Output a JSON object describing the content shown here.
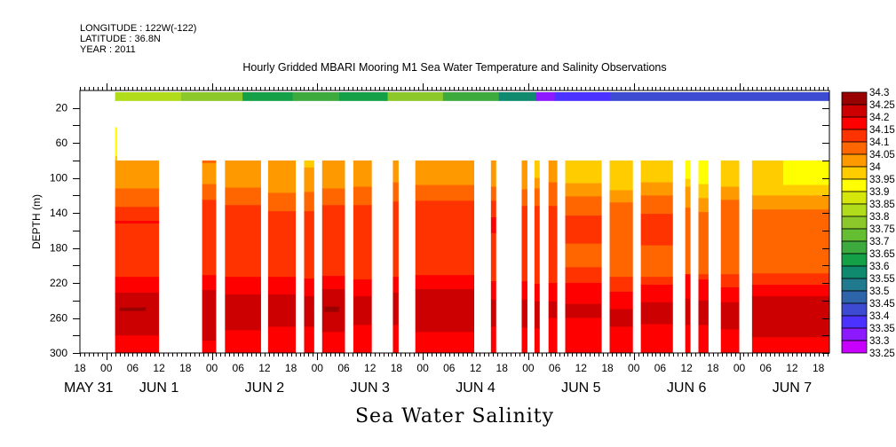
{
  "header": {
    "longitude": "LONGITUDE : 122W(-122)",
    "latitude": "LATITUDE : 36.8N",
    "year": "YEAR : 2011"
  },
  "chart_data": {
    "type": "heatmap",
    "title": "Hourly Gridded MBARI Mooring M1 Sea Water Temperature and Salinity Observations",
    "xlabel": "Sea Water Salinity",
    "ylabel": "DEPTH (m)",
    "x_units": "hours since 2011-06-01 00:00",
    "xlim": [
      -6,
      164.5
    ],
    "ylim": [
      0,
      300
    ],
    "y_ticks": [
      20,
      60,
      100,
      140,
      180,
      220,
      260,
      300
    ],
    "y_tick_labels": [
      "20",
      "60",
      "100",
      "140",
      "180",
      "220",
      "260",
      "300"
    ],
    "x_hour_ticks": [
      -6,
      0,
      6,
      12,
      18,
      24,
      30,
      36,
      42,
      48,
      54,
      60,
      66,
      72,
      78,
      84,
      90,
      96,
      102,
      108,
      114,
      120,
      126,
      132,
      138,
      144,
      150,
      156,
      162
    ],
    "x_hour_labels": [
      "18",
      "00",
      "06",
      "12",
      "18",
      "00",
      "06",
      "12",
      "18",
      "00",
      "06",
      "12",
      "18",
      "00",
      "06",
      "12",
      "18",
      "00",
      "06",
      "12",
      "18",
      "00",
      "06",
      "12",
      "18",
      "00",
      "06",
      "12",
      "18"
    ],
    "day_labels": [
      {
        "label": "MAY 31",
        "hour": -10
      },
      {
        "label": "JUN  1",
        "hour": 12
      },
      {
        "label": "JUN  2",
        "hour": 36
      },
      {
        "label": "JUN  3",
        "hour": 60
      },
      {
        "label": "JUN  4",
        "hour": 84
      },
      {
        "label": "JUN  5",
        "hour": 108
      },
      {
        "label": "JUN  6",
        "hour": 132
      },
      {
        "label": "JUN  7",
        "hour": 156
      }
    ],
    "colorbar": {
      "labels": [
        "34.3",
        "34.25",
        "34.2",
        "34.15",
        "34.1",
        "34.05",
        "34",
        "33.95",
        "33.9",
        "33.85",
        "33.8",
        "33.75",
        "33.7",
        "33.65",
        "33.6",
        "33.55",
        "33.5",
        "33.45",
        "33.4",
        "33.35",
        "33.3",
        "33.25"
      ],
      "colors": [
        "#990000",
        "#cc0000",
        "#ff0000",
        "#ff3300",
        "#ff6600",
        "#ff9900",
        "#ffcc00",
        "#ffff00",
        "#d4e60a",
        "#b0dc1c",
        "#8cc82a",
        "#64be32",
        "#3caa3c",
        "#14a046",
        "#0f8a6e",
        "#1e7a8c",
        "#2d64aa",
        "#3c4bd2",
        "#4b32ff",
        "#8c19ff",
        "#c800ff"
      ],
      "top_level": 34.25,
      "step": 0.05
    },
    "surface": {
      "depth_range": [
        2,
        12
      ],
      "segments": [
        [
          2,
          17,
          33.8
        ],
        [
          17,
          31,
          33.75
        ],
        [
          31,
          42.4,
          33.6
        ],
        [
          42.4,
          53,
          33.65
        ],
        [
          53,
          64,
          33.6
        ],
        [
          64,
          76.6,
          33.75
        ],
        [
          76.6,
          89.3,
          33.65
        ],
        [
          89.3,
          97.8,
          33.55
        ],
        [
          97.8,
          102,
          33.3
        ],
        [
          102,
          114.7,
          33.35
        ],
        [
          114.7,
          164.4,
          33.4
        ]
      ]
    },
    "spike": {
      "start": 2,
      "end": 2.5,
      "bands": [
        [
          42,
          33.9
        ],
        [
          75,
          33.95
        ]
      ],
      "bottom": 80
    },
    "columns": [
      {
        "start": 2,
        "end": 12,
        "bands": [
          [
            80,
            34.0
          ],
          [
            112,
            34.05
          ],
          [
            133,
            34.1
          ],
          [
            213,
            34.15
          ],
          [
            231,
            34.2
          ],
          [
            280,
            34.15
          ]
        ]
      },
      {
        "start": 21.8,
        "end": 25,
        "bands": [
          [
            80,
            34.05
          ],
          [
            83,
            34.0
          ],
          [
            107,
            34.05
          ],
          [
            125,
            34.1
          ],
          [
            211,
            34.15
          ],
          [
            228,
            34.2
          ],
          [
            286,
            34.15
          ]
        ]
      },
      {
        "start": 27,
        "end": 35.2,
        "bands": [
          [
            80,
            34.0
          ],
          [
            111,
            34.05
          ],
          [
            131,
            34.1
          ],
          [
            213,
            34.15
          ],
          [
            233,
            34.2
          ],
          [
            274,
            34.15
          ]
        ]
      },
      {
        "start": 36.8,
        "end": 43.1,
        "bands": [
          [
            80,
            34.0
          ],
          [
            117,
            34.05
          ],
          [
            138,
            34.1
          ],
          [
            213,
            34.15
          ],
          [
            233,
            34.2
          ],
          [
            270,
            34.15
          ]
        ]
      },
      {
        "start": 45,
        "end": 47.3,
        "bands": [
          [
            80,
            33.95
          ],
          [
            88,
            34.0
          ],
          [
            116,
            34.05
          ],
          [
            138,
            34.1
          ],
          [
            215,
            34.15
          ],
          [
            235,
            34.2
          ],
          [
            270,
            34.15
          ]
        ]
      },
      {
        "start": 49.1,
        "end": 54.3,
        "bands": [
          [
            80,
            34.0
          ],
          [
            112,
            34.05
          ],
          [
            131,
            34.1
          ],
          [
            212,
            34.15
          ],
          [
            227,
            34.2
          ],
          [
            276,
            34.15
          ]
        ]
      },
      {
        "start": 56.2,
        "end": 60.4,
        "bands": [
          [
            80,
            34.0
          ],
          [
            110,
            34.05
          ],
          [
            131,
            34.1
          ],
          [
            216,
            34.15
          ],
          [
            235,
            34.2
          ],
          [
            268,
            34.15
          ]
        ]
      },
      {
        "start": 65.2,
        "end": 66.5,
        "bands": [
          [
            80,
            34.0
          ],
          [
            105,
            34.05
          ],
          [
            127,
            34.1
          ],
          [
            213,
            34.15
          ],
          [
            231,
            34.2
          ],
          [
            268,
            34.15
          ]
        ]
      },
      {
        "start": 70.3,
        "end": 83.7,
        "bands": [
          [
            80,
            34.0
          ],
          [
            108,
            34.05
          ],
          [
            126,
            34.1
          ],
          [
            211,
            34.15
          ],
          [
            227,
            34.2
          ],
          [
            276,
            34.15
          ]
        ]
      },
      {
        "start": 87.5,
        "end": 88.7,
        "bands": [
          [
            80,
            34.0
          ],
          [
            110,
            34.05
          ],
          [
            126,
            34.1
          ],
          [
            145,
            34.15
          ],
          [
            163,
            34.1
          ],
          [
            218,
            34.15
          ],
          [
            239,
            34.2
          ],
          [
            270,
            34.15
          ]
        ]
      },
      {
        "start": 94.5,
        "end": 95.8,
        "bands": [
          [
            80,
            34.0
          ],
          [
            113,
            34.05
          ],
          [
            132,
            34.1
          ],
          [
            218,
            34.15
          ],
          [
            239,
            34.2
          ],
          [
            271,
            34.15
          ]
        ]
      },
      {
        "start": 97.4,
        "end": 98.6,
        "bands": [
          [
            80,
            33.95
          ],
          [
            100,
            34.0
          ],
          [
            112,
            34.05
          ],
          [
            132,
            34.1
          ],
          [
            221,
            34.15
          ],
          [
            241,
            34.2
          ],
          [
            272,
            34.15
          ]
        ]
      },
      {
        "start": 100.6,
        "end": 102.6,
        "bands": [
          [
            80,
            34.0
          ],
          [
            105,
            34.05
          ],
          [
            132,
            34.1
          ],
          [
            220,
            34.15
          ],
          [
            241,
            34.2
          ],
          [
            260,
            34.15
          ]
        ]
      },
      {
        "start": 104.4,
        "end": 112.7,
        "bands": [
          [
            80,
            33.95
          ],
          [
            106,
            34.0
          ],
          [
            121,
            34.05
          ],
          [
            143,
            34.1
          ],
          [
            175,
            34.05
          ],
          [
            202,
            34.1
          ],
          [
            220,
            34.15
          ],
          [
            244,
            34.2
          ],
          [
            260,
            34.15
          ]
        ]
      },
      {
        "start": 114.5,
        "end": 119.8,
        "bands": [
          [
            80,
            33.95
          ],
          [
            114,
            34.0
          ],
          [
            128,
            34.05
          ],
          [
            213,
            34.1
          ],
          [
            230,
            34.15
          ],
          [
            250,
            34.2
          ],
          [
            270,
            34.15
          ]
        ]
      },
      {
        "start": 121.6,
        "end": 128.9,
        "bands": [
          [
            80,
            33.95
          ],
          [
            105,
            34.0
          ],
          [
            120,
            34.05
          ],
          [
            141,
            34.1
          ],
          [
            177,
            34.05
          ],
          [
            213,
            34.1
          ],
          [
            222,
            34.15
          ],
          [
            242,
            34.2
          ],
          [
            267,
            34.15
          ]
        ]
      },
      {
        "start": 131.7,
        "end": 132.9,
        "bands": [
          [
            80,
            33.9
          ],
          [
            101,
            33.95
          ],
          [
            110,
            34.0
          ],
          [
            134,
            34.05
          ],
          [
            210,
            34.15
          ],
          [
            238,
            34.2
          ],
          [
            268,
            34.15
          ]
        ]
      },
      {
        "start": 134.7,
        "end": 137,
        "bands": [
          [
            80,
            33.9
          ],
          [
            107,
            33.95
          ],
          [
            123,
            34.0
          ],
          [
            139,
            34.05
          ],
          [
            210,
            34.1
          ],
          [
            216,
            34.15
          ],
          [
            240,
            34.2
          ],
          [
            268,
            34.15
          ]
        ]
      },
      {
        "start": 139.8,
        "end": 144,
        "bands": [
          [
            80,
            33.95
          ],
          [
            110,
            34.0
          ],
          [
            125,
            34.05
          ],
          [
            210,
            34.1
          ],
          [
            225,
            34.15
          ],
          [
            242,
            34.2
          ],
          [
            273,
            34.15
          ]
        ]
      },
      {
        "start": 146.9,
        "end": 164.4,
        "bands": [
          [
            80,
            33.95
          ],
          [
            120,
            34.0
          ],
          [
            136,
            34.05
          ],
          [
            209,
            34.1
          ],
          [
            222,
            34.15
          ],
          [
            235,
            34.2
          ],
          [
            282,
            34.15
          ]
        ]
      }
    ],
    "patches": [
      {
        "start": 154,
        "end": 164.4,
        "top": 80,
        "bottom": 108,
        "level": 33.9
      },
      {
        "start": 2,
        "end": 12,
        "top": 149,
        "bottom": 152,
        "level": 34.15
      },
      {
        "start": 3,
        "end": 9,
        "top": 248,
        "bottom": 252,
        "level": 34.25
      },
      {
        "start": 49.5,
        "end": 53,
        "top": 247,
        "bottom": 253,
        "level": 34.25
      }
    ]
  }
}
